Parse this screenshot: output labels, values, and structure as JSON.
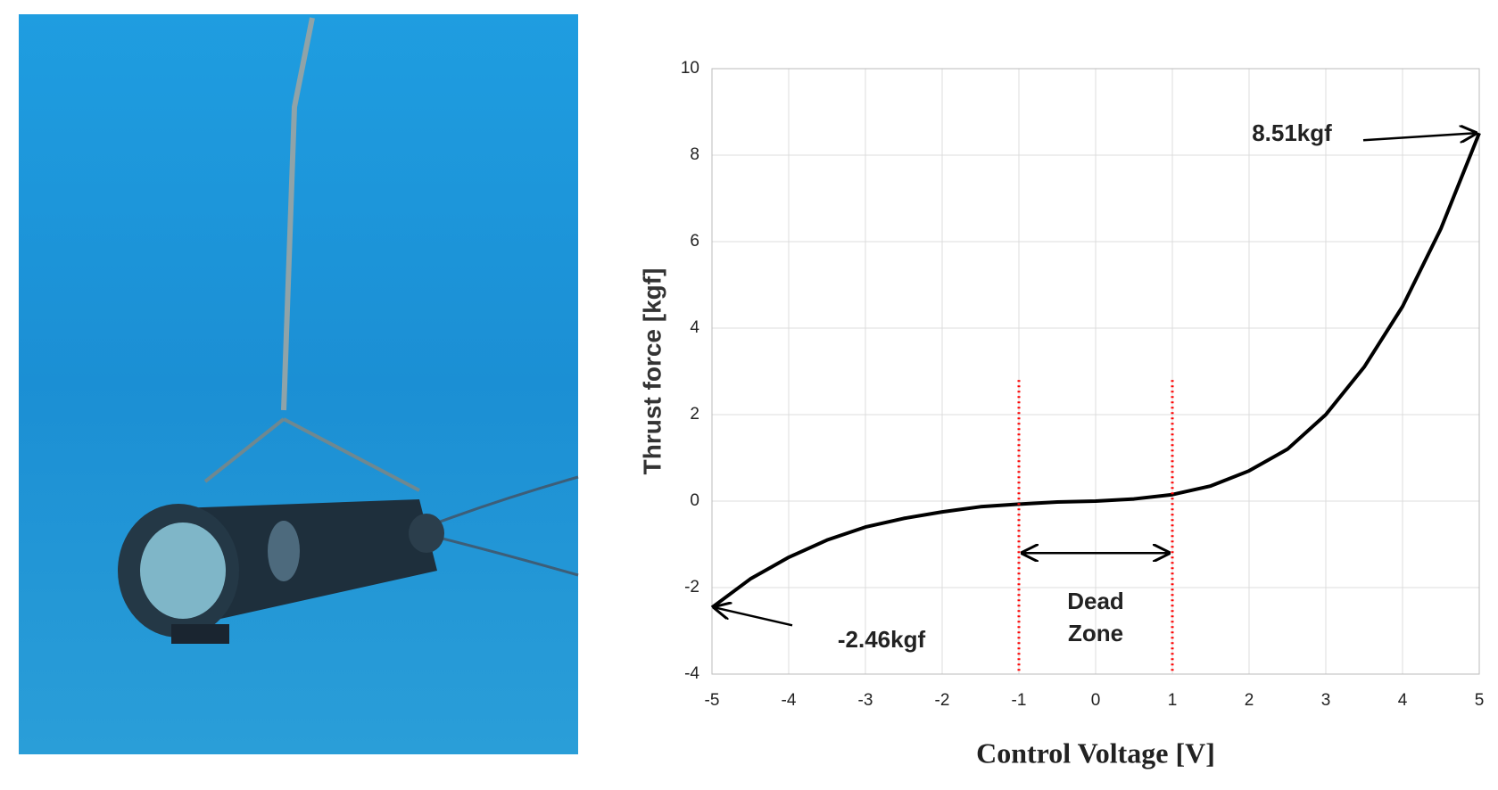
{
  "chart_data": {
    "type": "line",
    "x_label": "Control Voltage [V]",
    "y_label": "Thrust force [kgf]",
    "x": [
      -5,
      -4.5,
      -4,
      -3.5,
      -3,
      -2.5,
      -2,
      -1.5,
      -1,
      -0.5,
      0,
      0.5,
      1,
      1.5,
      2,
      2.5,
      3,
      3.5,
      4,
      4.5,
      5
    ],
    "series": [
      {
        "color": "#000000",
        "values": [
          -2.46,
          -1.8,
          -1.3,
          -0.9,
          -0.6,
          -0.4,
          -0.25,
          -0.13,
          -0.07,
          -0.02,
          0,
          0.05,
          0.15,
          0.35,
          0.7,
          1.2,
          2.0,
          3.1,
          4.5,
          6.3,
          8.51
        ]
      }
    ],
    "xlim": [
      -5,
      5
    ],
    "xticks": [
      -5,
      -4,
      -3,
      -2,
      -1,
      0,
      1,
      2,
      3,
      4,
      5
    ],
    "ylim": [
      -4,
      10
    ],
    "yticks": [
      -4,
      -2,
      0,
      2,
      4,
      6,
      8,
      10
    ],
    "grid": true,
    "annotations": [
      {
        "text": "8.51kgf",
        "x": 5,
        "y": 8.51
      },
      {
        "text": "-2.46kgf",
        "x": -5,
        "y": -2.46
      }
    ],
    "dead_zone": {
      "label_lines": [
        "Dead",
        "Zone"
      ],
      "bounds": [
        -1,
        1
      ],
      "top": 2.8,
      "arrow_y": -1.2,
      "color": "#ff0000"
    }
  }
}
